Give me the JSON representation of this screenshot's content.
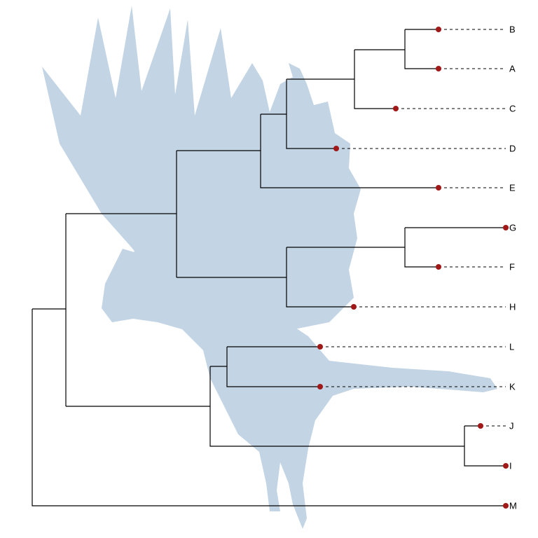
{
  "tree": {
    "tips": [
      "B",
      "A",
      "C",
      "D",
      "E",
      "G",
      "F",
      "H",
      "L",
      "K",
      "J",
      "I",
      "M"
    ],
    "point_color": "#a01818",
    "line_color": "#000000",
    "silhouette": {
      "subject": "bird-silhouette",
      "color": "#c3d4e4"
    }
  }
}
